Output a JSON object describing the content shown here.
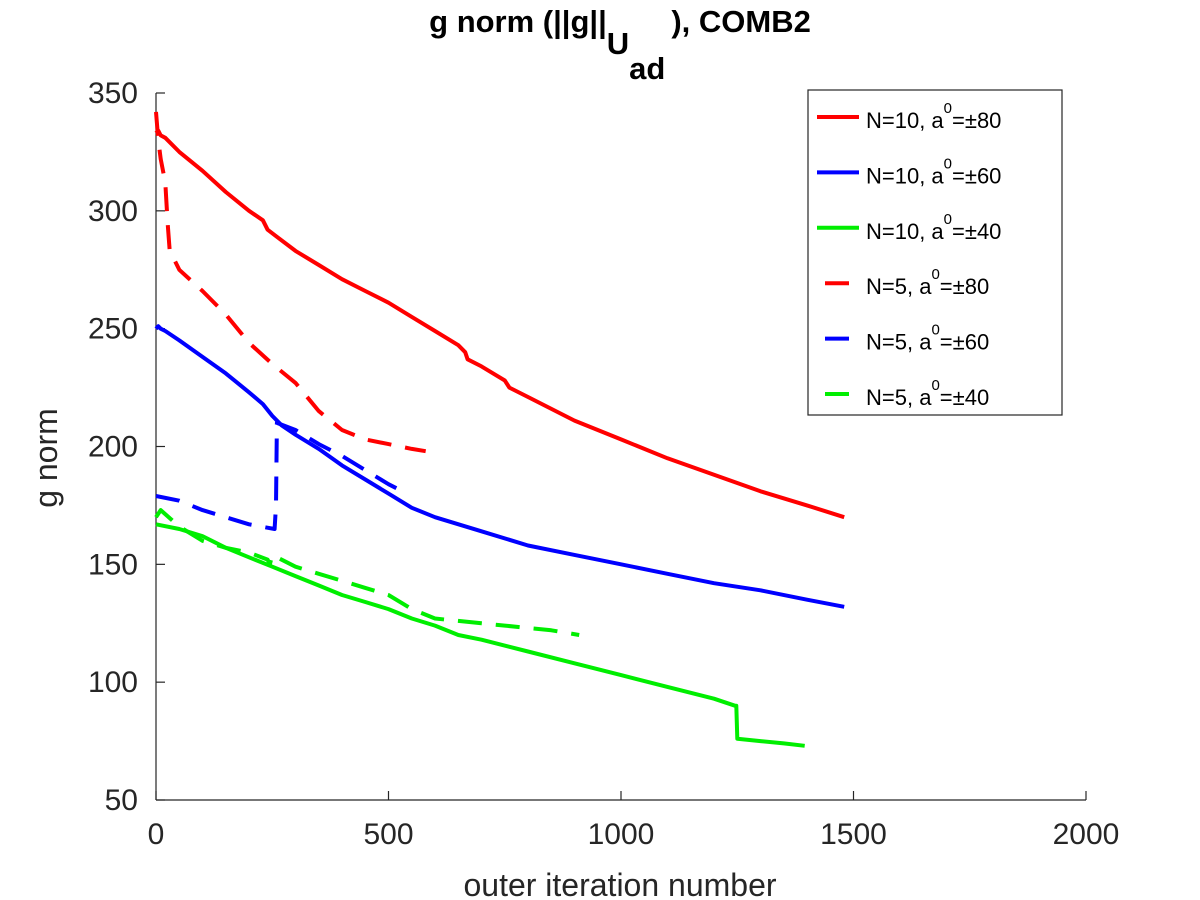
{
  "chart_data": {
    "type": "line",
    "title": {
      "prefix": "g norm (||g||",
      "subscript_main": "U",
      "subscript_sub": "ad",
      "suffix": "), COMB2"
    },
    "xlabel": "outer iteration number",
    "ylabel": "g norm",
    "xlim": [
      0,
      2000
    ],
    "ylim": [
      50,
      350
    ],
    "xticks": [
      0,
      500,
      1000,
      1500,
      2000
    ],
    "yticks": [
      50,
      100,
      150,
      200,
      250,
      300,
      350
    ],
    "xtick_labels": [
      "0",
      "500",
      "1000",
      "1500",
      "2000"
    ],
    "ytick_labels": [
      "50",
      "100",
      "150",
      "200",
      "250",
      "300",
      "350"
    ],
    "grid": false,
    "legend_position": "top-right",
    "series": [
      {
        "name_prefix": "N=10, a",
        "name_sup": "0",
        "name_suffix": "=±80",
        "color": "#ff0000",
        "style": "solid",
        "x": [
          0,
          5,
          10,
          20,
          50,
          100,
          150,
          200,
          230,
          240,
          260,
          300,
          350,
          400,
          450,
          500,
          550,
          600,
          650,
          665,
          670,
          700,
          750,
          760,
          800,
          900,
          1000,
          1100,
          1200,
          1300,
          1400,
          1480
        ],
        "y": [
          333,
          334,
          332,
          331,
          325,
          317,
          308,
          300,
          296,
          292,
          289,
          283,
          277,
          271,
          266,
          261,
          255,
          249,
          243,
          240,
          237,
          234,
          228,
          225,
          221,
          211,
          203,
          195,
          188,
          181,
          175,
          170
        ]
      },
      {
        "name_prefix": "N=10, a",
        "name_sup": "0",
        "name_suffix": "=±60",
        "color": "#0000ff",
        "style": "solid",
        "x": [
          0,
          5,
          10,
          20,
          50,
          100,
          150,
          200,
          230,
          250,
          270,
          300,
          350,
          400,
          450,
          500,
          550,
          600,
          700,
          800,
          900,
          1000,
          1100,
          1200,
          1300,
          1400,
          1480
        ],
        "y": [
          250,
          251,
          250,
          249,
          245,
          238,
          231,
          223,
          218,
          213,
          209,
          205,
          199,
          192,
          186,
          180,
          174,
          170,
          164,
          158,
          154,
          150,
          146,
          142,
          139,
          135,
          132
        ]
      },
      {
        "name_prefix": "N=10, a",
        "name_sup": "0",
        "name_suffix": "=±40",
        "color": "#00ee00",
        "style": "solid",
        "x": [
          0,
          50,
          100,
          150,
          200,
          250,
          300,
          350,
          400,
          450,
          500,
          550,
          600,
          650,
          700,
          800,
          900,
          1000,
          1100,
          1200,
          1245,
          1248,
          1250,
          1300,
          1350,
          1395
        ],
        "y": [
          167,
          165,
          162,
          157,
          153,
          149,
          145,
          141,
          137,
          134,
          131,
          127,
          124,
          120,
          118,
          113,
          108,
          103,
          98,
          93,
          90,
          90,
          76,
          75,
          74,
          73
        ]
      },
      {
        "name_prefix": "N=5, a",
        "name_sup": "0",
        "name_suffix": "=±80",
        "color": "#ff0000",
        "style": "dashed",
        "x": [
          0,
          5,
          10,
          20,
          25,
          30,
          40,
          50,
          100,
          150,
          200,
          250,
          300,
          350,
          400,
          450,
          500,
          550,
          580
        ],
        "y": [
          342,
          330,
          322,
          312,
          295,
          282,
          279,
          275,
          266,
          256,
          244,
          235,
          227,
          215,
          207,
          203,
          201,
          199,
          198
        ]
      },
      {
        "name_prefix": "N=5, a",
        "name_sup": "0",
        "name_suffix": "=±60",
        "color": "#0000ff",
        "style": "dashed",
        "x": [
          0,
          50,
          100,
          150,
          200,
          255,
          258,
          260,
          300,
          350,
          400,
          450,
          500,
          530
        ],
        "y": [
          179,
          177,
          173,
          170,
          167,
          165,
          175,
          210,
          207,
          201,
          196,
          190,
          184,
          181
        ]
      },
      {
        "name_prefix": "N=5, a",
        "name_sup": "0",
        "name_suffix": "=±40",
        "color": "#00ee00",
        "style": "dashed",
        "x": [
          0,
          10,
          50,
          100,
          150,
          200,
          240,
          245,
          250,
          300,
          350,
          400,
          450,
          500,
          550,
          600,
          650,
          700,
          750,
          800,
          850,
          910
        ],
        "y": [
          170,
          173,
          166,
          160,
          157,
          155,
          152,
          150,
          154,
          149,
          146,
          143,
          140,
          137,
          131,
          127,
          126,
          125,
          124,
          123,
          122,
          120
        ]
      }
    ]
  }
}
